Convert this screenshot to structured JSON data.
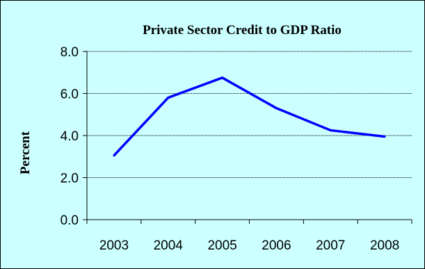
{
  "chart_data": {
    "type": "line",
    "title": "Private Sector Credit to GDP Ratio",
    "xlabel": "",
    "ylabel": "Percent",
    "categories": [
      "2003",
      "2004",
      "2005",
      "2006",
      "2007",
      "2008"
    ],
    "series": [
      {
        "values": [
          3.05,
          5.8,
          6.75,
          5.3,
          4.25,
          3.95
        ]
      }
    ],
    "ylim": [
      0,
      8
    ],
    "yticks": [
      "0.0",
      "2.0",
      "4.0",
      "6.0",
      "8.0"
    ],
    "grid": true,
    "legend": "none",
    "line_color": "#0000ff",
    "background_color": "#ccffff"
  }
}
